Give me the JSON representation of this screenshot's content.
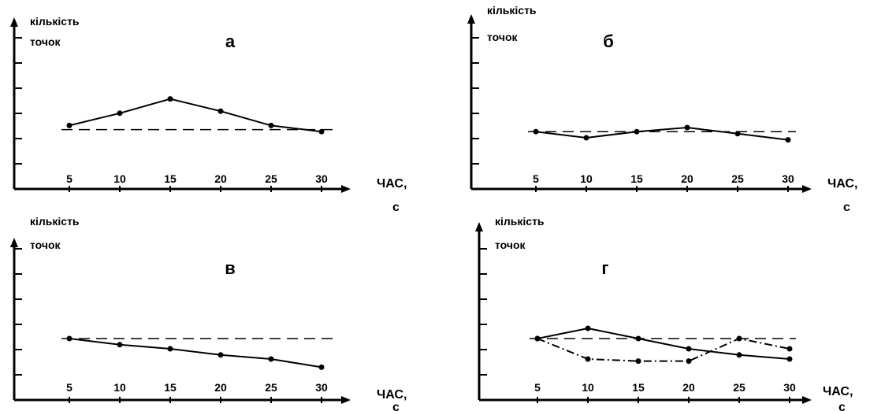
{
  "chart_data": [
    {
      "type": "line",
      "title": "а",
      "ylabel": "кількість точок",
      "xlabel": "ЧАС, с",
      "x": [
        5,
        10,
        15,
        20,
        25,
        30
      ],
      "xticks": [
        "5",
        "10",
        "15",
        "20",
        "25",
        "30"
      ],
      "ylim": [
        0,
        6
      ],
      "series": [
        {
          "values": [
            3.1,
            3.7,
            4.4,
            3.8,
            3.1,
            2.8
          ],
          "style": "solid"
        }
      ],
      "reference_line": 2.9
    },
    {
      "type": "line",
      "title": "б",
      "ylabel": "кількість точок",
      "xlabel": "ЧАС, с",
      "x": [
        5,
        10,
        15,
        20,
        25,
        30
      ],
      "xticks": [
        "5",
        "10",
        "15",
        "20",
        "25",
        "30"
      ],
      "ylim": [
        0,
        6
      ],
      "series": [
        {
          "values": [
            2.8,
            2.5,
            2.8,
            3.0,
            2.7,
            2.4
          ],
          "style": "solid"
        }
      ],
      "reference_line": 2.8
    },
    {
      "type": "line",
      "title": "в",
      "ylabel": "кількість точок",
      "xlabel": "ЧАС, с",
      "x": [
        5,
        10,
        15,
        20,
        25,
        30
      ],
      "xticks": [
        "5",
        "10",
        "15",
        "20",
        "25",
        "30"
      ],
      "ylim": [
        0,
        6
      ],
      "series": [
        {
          "values": [
            3.0,
            2.7,
            2.5,
            2.2,
            2.0,
            1.6
          ],
          "style": "solid"
        }
      ],
      "reference_line": 3.0
    },
    {
      "type": "line",
      "title": "г",
      "ylabel": "кількість точок",
      "xlabel": "ЧАС, с",
      "x": [
        5,
        10,
        15,
        20,
        25,
        30
      ],
      "xticks": [
        "5",
        "10",
        "15",
        "20",
        "25",
        "30"
      ],
      "ylim": [
        0,
        6
      ],
      "series": [
        {
          "values": [
            3.0,
            3.5,
            3.0,
            2.5,
            2.2,
            2.0
          ],
          "style": "solid"
        },
        {
          "values": [
            3.0,
            2.0,
            1.9,
            1.9,
            3.0,
            2.5
          ],
          "style": "dashdot"
        }
      ],
      "reference_line": 3.0
    }
  ],
  "colors": {
    "line": "#000000",
    "reference": "#000000",
    "background": "#ffffff"
  }
}
